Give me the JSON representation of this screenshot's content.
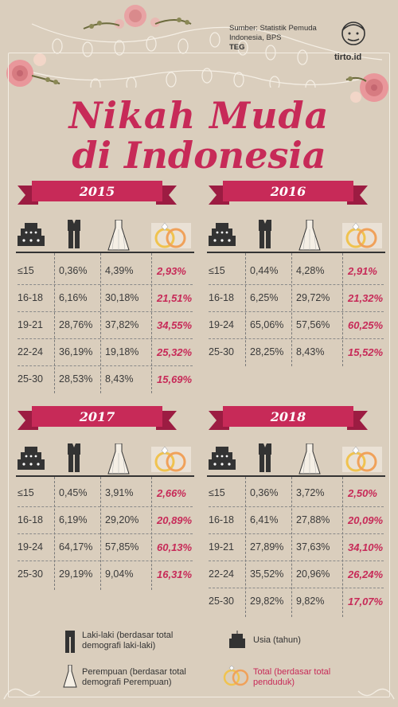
{
  "source": {
    "line1": "Sumber: Statistik Pemuda",
    "line2": "Indonesia, BPS",
    "author": "TEG"
  },
  "logo_text": "tirto.id",
  "title": {
    "line1": "Nikah Muda",
    "line2": "di Indonesia"
  },
  "colors": {
    "background": "#dacebd",
    "accent": "#c72a58",
    "ring": "#f0a15a"
  },
  "icons": [
    "cake-icon",
    "suit-icon",
    "dress-icon",
    "rings-icon"
  ],
  "panels": [
    {
      "year": "2015",
      "rows": [
        {
          "age": "≤15",
          "male": "0,36%",
          "female": "4,39%",
          "total": "2,93%"
        },
        {
          "age": "16-18",
          "male": "6,16%",
          "female": "30,18%",
          "total": "21,51%"
        },
        {
          "age": "19-21",
          "male": "28,76%",
          "female": "37,82%",
          "total": "34,55%"
        },
        {
          "age": "22-24",
          "male": "36,19%",
          "female": "19,18%",
          "total": "25,32%"
        },
        {
          "age": "25-30",
          "male": "28,53%",
          "female": "8,43%",
          "total": "15,69%"
        }
      ]
    },
    {
      "year": "2016",
      "rows": [
        {
          "age": "≤15",
          "male": "0,44%",
          "female": "4,28%",
          "total": "2,91%"
        },
        {
          "age": "16-18",
          "male": "6,25%",
          "female": "29,72%",
          "total": "21,32%"
        },
        {
          "age": "19-24",
          "male": "65,06%",
          "female": "57,56%",
          "total": "60,25%"
        },
        {
          "age": "25-30",
          "male": "28,25%",
          "female": "8,43%",
          "total": "15,52%"
        }
      ]
    },
    {
      "year": "2017",
      "rows": [
        {
          "age": "≤15",
          "male": "0,45%",
          "female": "3,91%",
          "total": "2,66%"
        },
        {
          "age": "16-18",
          "male": "6,19%",
          "female": "29,20%",
          "total": "20,89%"
        },
        {
          "age": "19-24",
          "male": "64,17%",
          "female": "57,85%",
          "total": "60,13%"
        },
        {
          "age": "25-30",
          "male": "29,19%",
          "female": "9,04%",
          "total": "16,31%"
        }
      ]
    },
    {
      "year": "2018",
      "rows": [
        {
          "age": "≤15",
          "male": "0,36%",
          "female": "3,72%",
          "total": "2,50%"
        },
        {
          "age": "16-18",
          "male": "6,41%",
          "female": "27,88%",
          "total": "20,09%"
        },
        {
          "age": "19-21",
          "male": "27,89%",
          "female": "37,63%",
          "total": "34,10%"
        },
        {
          "age": "22-24",
          "male": "35,52%",
          "female": "20,96%",
          "total": "26,24%"
        },
        {
          "age": "25-30",
          "male": "29,82%",
          "female": "9,82%",
          "total": "17,07%"
        }
      ]
    }
  ],
  "legend": {
    "male": {
      "line1": "Laki-laki (berdasar total",
      "line2": "demografi laki-laki)"
    },
    "female": {
      "line1": "Perempuan (berdasar total",
      "line2": "demografi Perempuan)"
    },
    "age": {
      "line1": "Usia (tahun)"
    },
    "total": {
      "line1": "Total (berdasar total",
      "line2": "penduduk)"
    }
  }
}
